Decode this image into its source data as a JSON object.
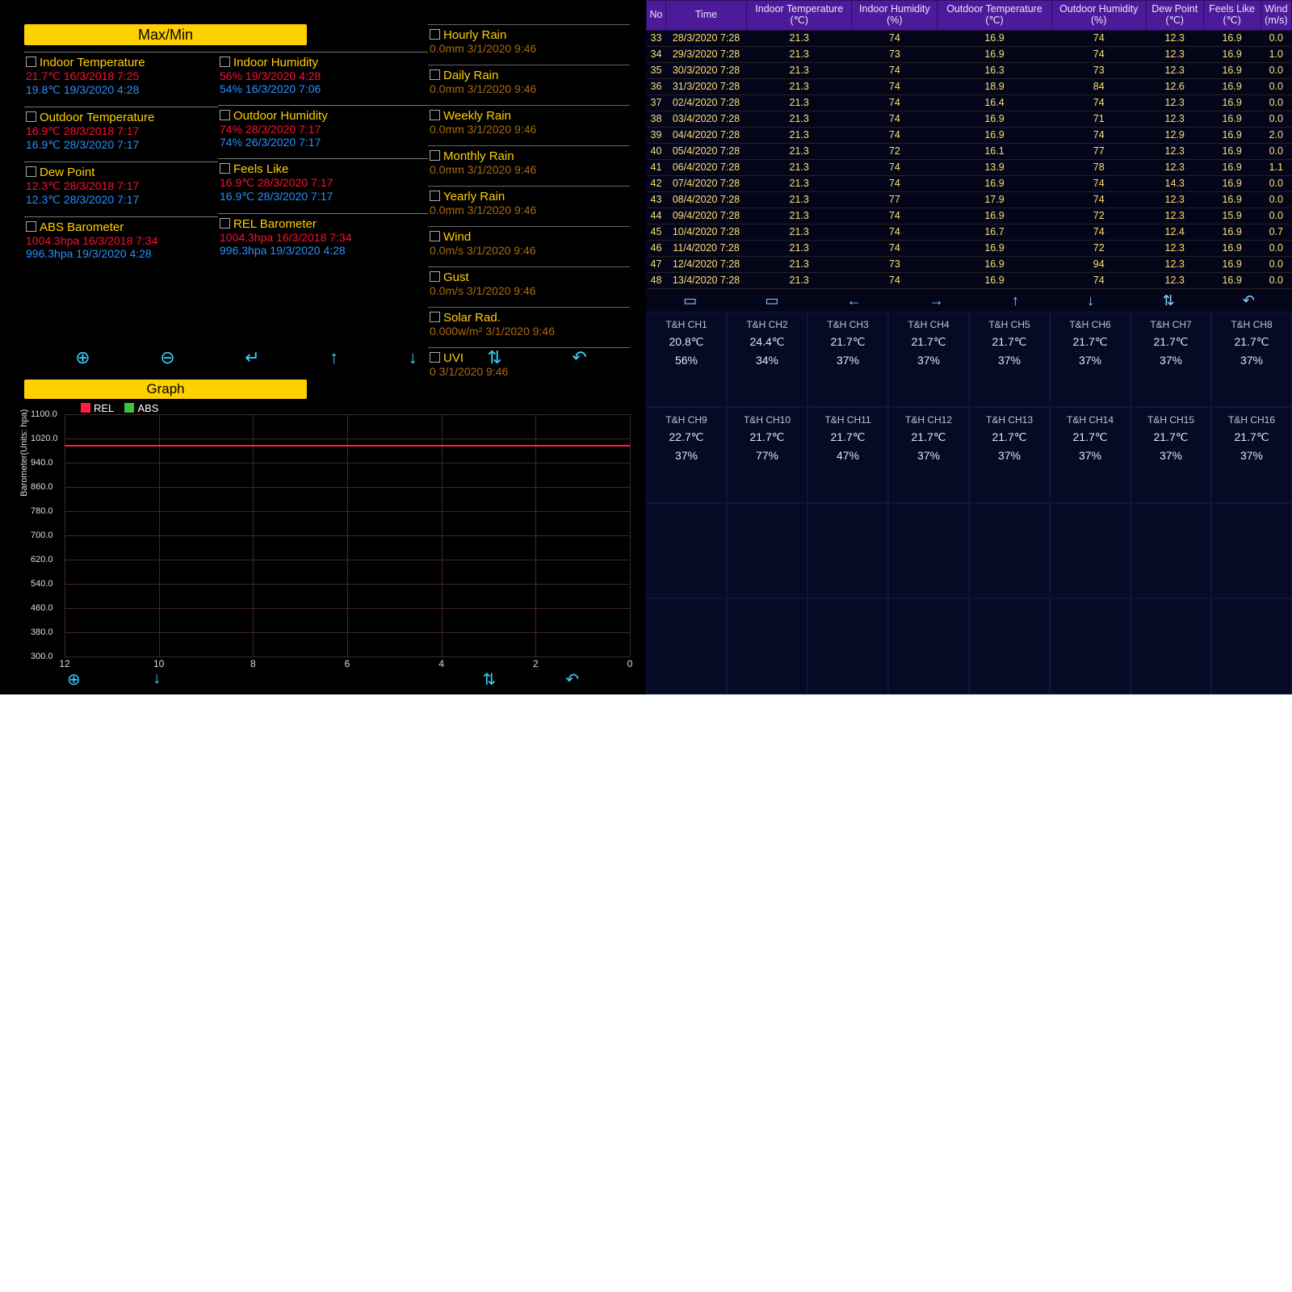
{
  "headers": {
    "maxmin": "Max/Min",
    "graph": "Graph"
  },
  "maxmin": {
    "indoor_temp": {
      "name": "Indoor Temperature",
      "hi": "21.7℃ 16/3/2018 7:25",
      "lo": "19.8℃ 19/3/2020 4:28"
    },
    "indoor_hum": {
      "name": "Indoor Humidity",
      "hi": "56% 19/3/2020 4:28",
      "lo": "54% 16/3/2020 7:06"
    },
    "outdoor_temp": {
      "name": "Outdoor Temperature",
      "hi": "16.9℃ 28/3/2018 7:17",
      "lo": "16.9℃ 28/3/2020 7:17"
    },
    "outdoor_hum": {
      "name": "Outdoor Humidity",
      "hi": "74% 28/3/2020 7:17",
      "lo": "74% 26/3/2020 7:17"
    },
    "dew": {
      "name": "Dew Point",
      "hi": "12.3℃ 28/3/2018 7:17",
      "lo": "12.3℃ 28/3/2020 7:17"
    },
    "feels": {
      "name": "Feels Like",
      "hi": "16.9℃ 28/3/2020 7:17",
      "lo": "16.9℃ 28/3/2020 7:17"
    },
    "abs": {
      "name": "ABS Barometer",
      "hi": "1004.3hpa 16/3/2018 7:34",
      "lo": "996.3hpa 19/3/2020 4:28"
    },
    "rel": {
      "name": "REL Barometer",
      "hi": "1004.3hpa 16/3/2018 7:34",
      "lo": "996.3hpa 19/3/2020 4:28"
    },
    "hourly_rain": {
      "name": "Hourly Rain",
      "v": "0.0mm 3/1/2020 9:46"
    },
    "daily_rain": {
      "name": "Daily Rain",
      "v": "0.0mm 3/1/2020 9:46"
    },
    "weekly_rain": {
      "name": "Weekly Rain",
      "v": "0.0mm 3/1/2020 9:46"
    },
    "monthly_rain": {
      "name": "Monthly Rain",
      "v": "0.0mm 3/1/2020 9:46"
    },
    "yearly_rain": {
      "name": "Yearly Rain",
      "v": "0.0mm 3/1/2020 9:46"
    },
    "wind": {
      "name": "Wind",
      "v": "0.0m/s 3/1/2020 9:46"
    },
    "gust": {
      "name": "Gust",
      "v": "0.0m/s 3/1/2020 9:46"
    },
    "solar": {
      "name": "Solar Rad.",
      "v": "0.000w/m² 3/1/2020 9:46"
    },
    "uvi": {
      "name": "UVI",
      "v": "0 3/1/2020 9:46"
    }
  },
  "graph": {
    "type": "line",
    "y_label": "Barometer(Units: hpa)",
    "legend": [
      {
        "label": "REL",
        "color": "#ff2040"
      },
      {
        "label": "ABS",
        "color": "#40c040"
      }
    ],
    "ylim": [
      300,
      1100
    ],
    "ytick_step": 80,
    "yticks": [
      "1100.0",
      "1020.0",
      "940.0",
      "860.0",
      "780.0",
      "700.0",
      "620.0",
      "540.0",
      "460.0",
      "380.0",
      "300.0"
    ],
    "xticks": [
      "12",
      "10",
      "8",
      "6",
      "4",
      "2",
      "0"
    ],
    "line_value": 1000,
    "background_color": "#000000",
    "grid_color": "#402828",
    "line_color": "#ff2040"
  },
  "table": {
    "columns": [
      "No",
      "Time",
      "Indoor Temperature (℃)",
      "Indoor Humidity (%)",
      "Outdoor Temperature (℃)",
      "Outdoor Humidity (%)",
      "Dew Point (℃)",
      "Feels Like (℃)",
      "Wind (m/s)"
    ],
    "rows": [
      [
        "33",
        "28/3/2020 7:28",
        "21.3",
        "74",
        "16.9",
        "74",
        "12.3",
        "16.9",
        "0.0"
      ],
      [
        "34",
        "29/3/2020 7:28",
        "21.3",
        "73",
        "16.9",
        "74",
        "12.3",
        "16.9",
        "1.0"
      ],
      [
        "35",
        "30/3/2020 7:28",
        "21.3",
        "74",
        "16.3",
        "73",
        "12.3",
        "16.9",
        "0.0"
      ],
      [
        "36",
        "31/3/2020 7:28",
        "21.3",
        "74",
        "18.9",
        "84",
        "12.6",
        "16.9",
        "0.0"
      ],
      [
        "37",
        "02/4/2020 7:28",
        "21.3",
        "74",
        "16.4",
        "74",
        "12.3",
        "16.9",
        "0.0"
      ],
      [
        "38",
        "03/4/2020 7:28",
        "21.3",
        "74",
        "16.9",
        "71",
        "12.3",
        "16.9",
        "0.0"
      ],
      [
        "39",
        "04/4/2020 7:28",
        "21.3",
        "74",
        "16.9",
        "74",
        "12.9",
        "16.9",
        "2.0"
      ],
      [
        "40",
        "05/4/2020 7:28",
        "21.3",
        "72",
        "16.1",
        "77",
        "12.3",
        "16.9",
        "0.0"
      ],
      [
        "41",
        "06/4/2020 7:28",
        "21.3",
        "74",
        "13.9",
        "78",
        "12.3",
        "16.9",
        "1.1"
      ],
      [
        "42",
        "07/4/2020 7:28",
        "21.3",
        "74",
        "16.9",
        "74",
        "14.3",
        "16.9",
        "0.0"
      ],
      [
        "43",
        "08/4/2020 7:28",
        "21.3",
        "77",
        "17.9",
        "74",
        "12.3",
        "16.9",
        "0.0"
      ],
      [
        "44",
        "09/4/2020 7:28",
        "21.3",
        "74",
        "16.9",
        "72",
        "12.3",
        "15.9",
        "0.0"
      ],
      [
        "45",
        "10/4/2020 7:28",
        "21.3",
        "74",
        "16.7",
        "74",
        "12.4",
        "16.9",
        "0.7"
      ],
      [
        "46",
        "11/4/2020 7:28",
        "21.3",
        "74",
        "16.9",
        "72",
        "12.3",
        "16.9",
        "0.0"
      ],
      [
        "47",
        "12/4/2020 7:28",
        "21.3",
        "73",
        "16.9",
        "94",
        "12.3",
        "16.9",
        "0.0"
      ],
      [
        "48",
        "13/4/2020 7:28",
        "21.3",
        "74",
        "16.9",
        "74",
        "12.3",
        "16.9",
        "0.0"
      ]
    ]
  },
  "channels": [
    {
      "name": "T&H CH1",
      "t": "20.8℃",
      "h": "56%"
    },
    {
      "name": "T&H CH2",
      "t": "24.4℃",
      "h": "34%"
    },
    {
      "name": "T&H CH3",
      "t": "21.7℃",
      "h": "37%"
    },
    {
      "name": "T&H CH4",
      "t": "21.7℃",
      "h": "37%"
    },
    {
      "name": "T&H CH5",
      "t": "21.7℃",
      "h": "37%"
    },
    {
      "name": "T&H CH6",
      "t": "21.7℃",
      "h": "37%"
    },
    {
      "name": "T&H CH7",
      "t": "21.7℃",
      "h": "37%"
    },
    {
      "name": "T&H CH8",
      "t": "21.7℃",
      "h": "37%"
    },
    {
      "name": "T&H CH9",
      "t": "22.7℃",
      "h": "37%"
    },
    {
      "name": "T&H CH10",
      "t": "21.7℃",
      "h": "77%"
    },
    {
      "name": "T&H CH11",
      "t": "21.7℃",
      "h": "47%"
    },
    {
      "name": "T&H CH12",
      "t": "21.7℃",
      "h": "37%"
    },
    {
      "name": "T&H CH13",
      "t": "21.7℃",
      "h": "37%"
    },
    {
      "name": "T&H CH14",
      "t": "21.7℃",
      "h": "37%"
    },
    {
      "name": "T&H CH15",
      "t": "21.7℃",
      "h": "37%"
    },
    {
      "name": "T&H CH16",
      "t": "21.7℃",
      "h": "37%"
    }
  ],
  "icons_left": [
    "⊕",
    "⊖",
    "↵",
    "↑",
    "↓",
    "⇅",
    "↶"
  ],
  "icons_right_top": [
    "▭",
    "▭",
    "←",
    "→",
    "↑",
    "↓",
    "⇅",
    "↶"
  ],
  "icons_bottom": [
    "⊕",
    "↓",
    "",
    "",
    "",
    "⇅",
    "↶"
  ],
  "colors": {
    "accent": "#ffd000",
    "hi": "#ff1030",
    "lo": "#2890ff",
    "zero": "#aa6a10",
    "table_header_bg": "#4d1a99",
    "table_cell_fg": "#f8e070",
    "ch_bg": "#060a25",
    "icon": "#3bd0ff"
  }
}
